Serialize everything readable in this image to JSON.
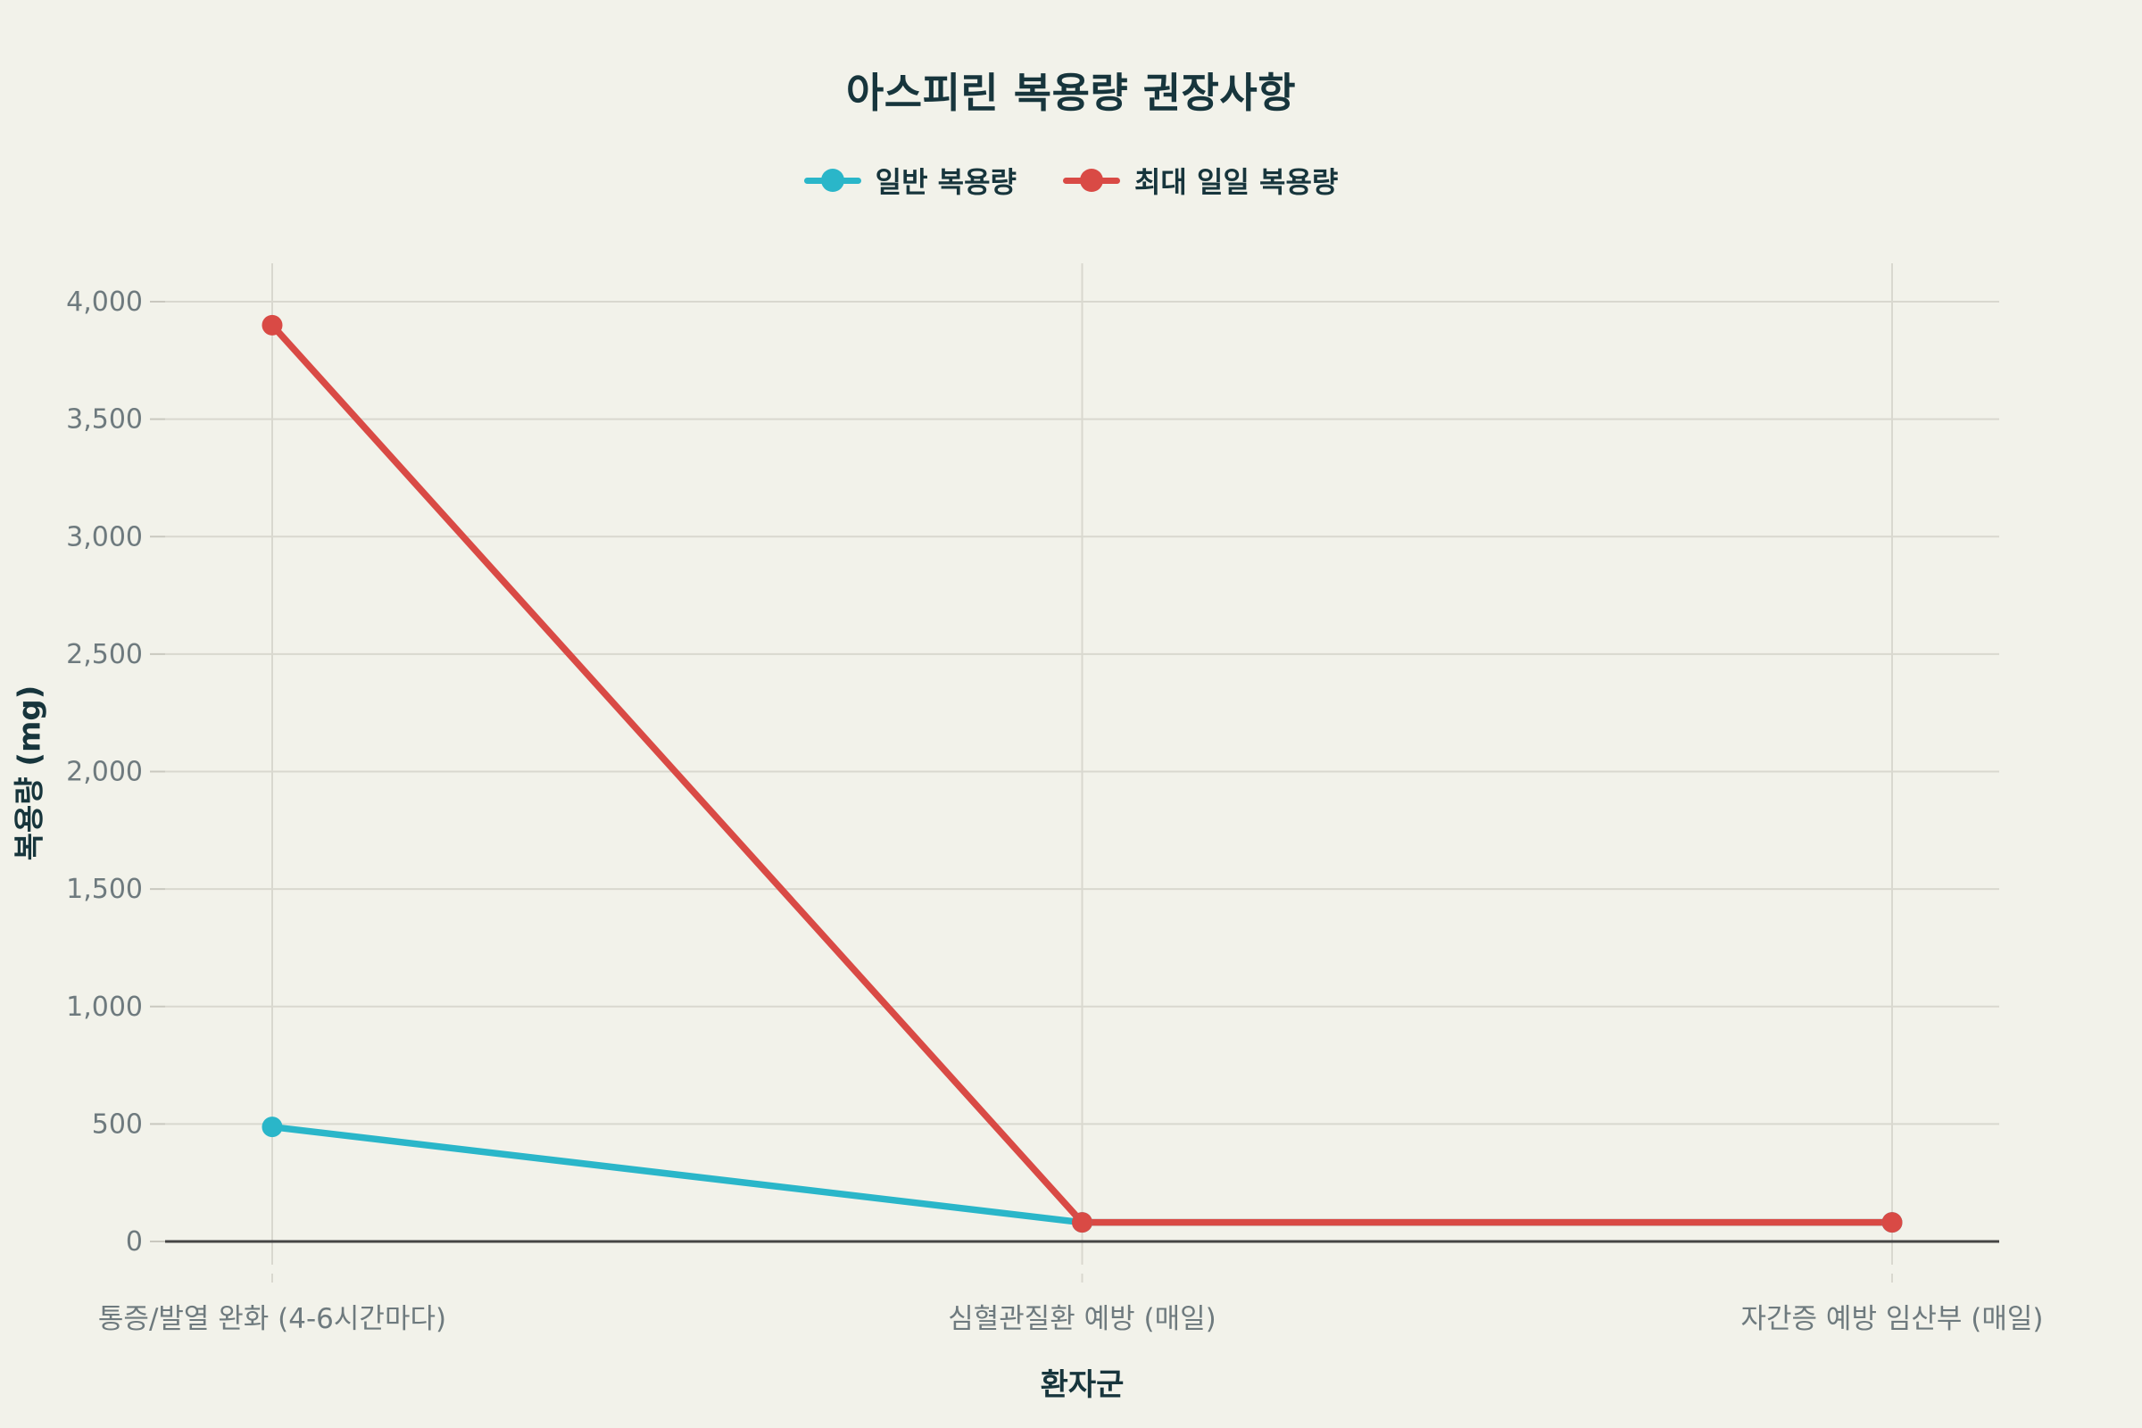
{
  "chart_data": {
    "type": "line",
    "title": "아스피린 복용량 권장사항",
    "xlabel": "환자군",
    "ylabel": "복용량 (mg)",
    "categories": [
      "통증/발열 완화 (4-6시간마다)",
      "심혈관질환 예방 (매일)",
      "자간증 예방 임산부 (매일)"
    ],
    "series": [
      {
        "name": "일반 복용량",
        "color": "#2ab6c9",
        "values": [
          487.5,
          81,
          81
        ]
      },
      {
        "name": "최대 일일 복용량",
        "color": "#d94a45",
        "values": [
          3900,
          81,
          81
        ]
      }
    ],
    "ylim": [
      0,
      4000
    ],
    "yticks": {
      "values": [
        0,
        500,
        1000,
        1500,
        2000,
        2500,
        3000,
        3500,
        4000
      ],
      "labels": [
        "0",
        "500",
        "1,000",
        "1,500",
        "2,000",
        "2,500",
        "3,000",
        "3,500",
        "4,000"
      ]
    },
    "grid": true,
    "legend_position": "top",
    "colors": {
      "background": "#f2f2ea",
      "gridline": "#d9d8cf",
      "tick_stub": "#c9c8bf",
      "axis_line": "#454545",
      "tick_text": "#6e7a7e",
      "heading_text": "#17353c"
    }
  }
}
